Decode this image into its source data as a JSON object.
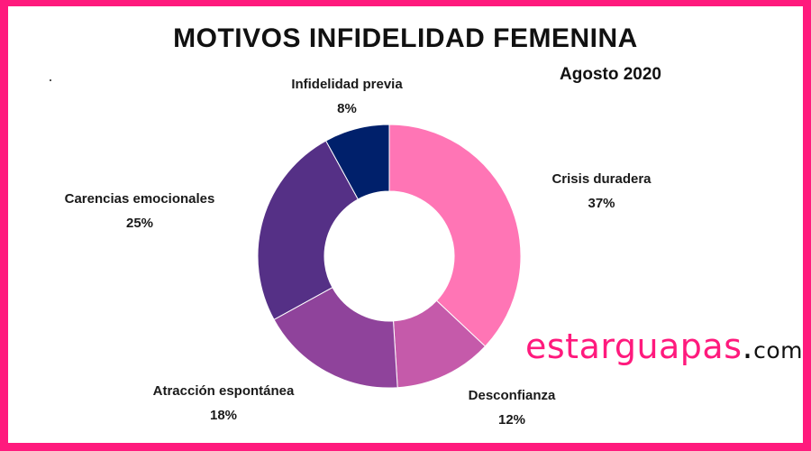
{
  "chart_data": {
    "type": "pie",
    "title": "MOTIVOS INFIDELIDAD FEMENINA",
    "subtitle": "Agosto 2020",
    "categories": [
      "Crisis duradera",
      "Desconfianza",
      "Atracción espontánea",
      "Carencias emocionales",
      "Infidelidad previa"
    ],
    "values": [
      37,
      12,
      18,
      25,
      8
    ],
    "value_labels": [
      "37%",
      "12%",
      "18%",
      "25%",
      "8%"
    ],
    "colors": [
      "#ff75b5",
      "#c55aaa",
      "#8f439b",
      "#553086",
      "#00206b"
    ],
    "donut": true
  },
  "brand": {
    "main": "estarguapas",
    "dot": ".",
    "suffix": "com"
  },
  "frame_color": "#ff1a7d"
}
